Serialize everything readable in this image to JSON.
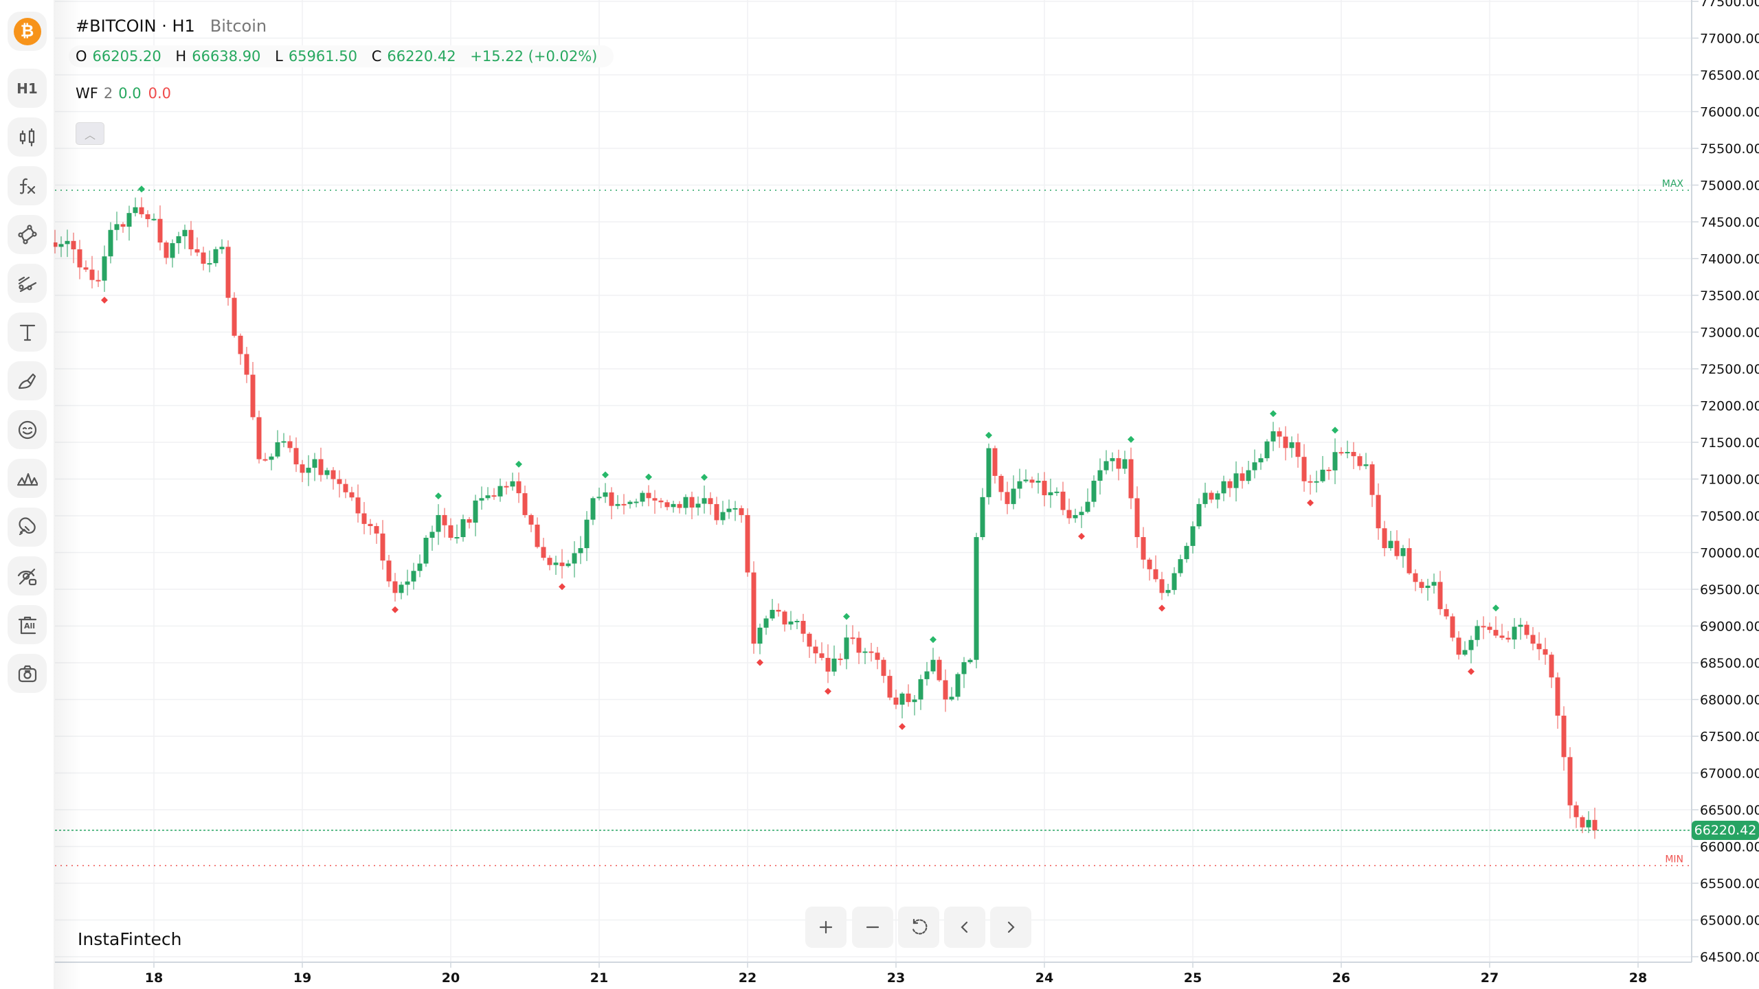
{
  "header": {
    "symbol": "#BITCOIN · H1",
    "name": "Bitcoin",
    "ohlc": {
      "o_label": "O",
      "o": "66205.20",
      "h_label": "H",
      "h": "66638.90",
      "l_label": "L",
      "l": "65961.50",
      "c_label": "C",
      "c": "66220.42",
      "change": "+15.22 (+0.02%)"
    },
    "indicator": {
      "name": "WF",
      "period": "2",
      "up": "0.0",
      "down": "0.0"
    },
    "collapse_icon": "chevron-up-icon"
  },
  "sidebar": {
    "logo_glyph": "₿",
    "tools": [
      "timeframe-h1",
      "chart-type-candles",
      "indicators-fx",
      "drawing-shapes",
      "trend-lines",
      "text",
      "brush",
      "emoji",
      "patterns",
      "magnet",
      "hide-drawings",
      "delete-all",
      "screenshot"
    ],
    "timeframe_label": "H1",
    "delete_all_label": "All"
  },
  "controls": [
    "zoom-in",
    "zoom-out",
    "reset",
    "scroll-left",
    "scroll-right"
  ],
  "brand": "InstaFintech",
  "colors": {
    "up": "#27a463",
    "down": "#ef5350",
    "grid": "#f0f1f3",
    "axis": "#d0d7de"
  },
  "chart_data": {
    "type": "candlestick",
    "timeframe": "H1",
    "x_tick_labels": [
      "18",
      "19",
      "20",
      "21",
      "22",
      "23",
      "24",
      "25",
      "26",
      "27",
      "28"
    ],
    "x_first_tick_hour_index": 16,
    "hours_per_tick": 24,
    "y_tick_labels": [
      "77500.00",
      "77000.00",
      "76500.00",
      "76000.00",
      "75500.00",
      "75000.00",
      "74500.00",
      "74000.00",
      "73500.00",
      "73000.00",
      "72500.00",
      "72000.00",
      "71500.00",
      "71000.00",
      "70500.00",
      "70000.00",
      "69500.00",
      "69000.00",
      "68500.00",
      "68000.00",
      "67500.00",
      "67000.00",
      "66500.00",
      "66000.00",
      "65500.00",
      "65000.00",
      "64500.00"
    ],
    "ylim": [
      64500,
      77500
    ],
    "candle_count": 250,
    "close_path": [
      [
        0,
        74160
      ],
      [
        2,
        74240
      ],
      [
        5,
        73850
      ],
      [
        7,
        73700
      ],
      [
        9,
        74390
      ],
      [
        12,
        74620
      ],
      [
        16,
        74540
      ],
      [
        18,
        74010
      ],
      [
        21,
        74390
      ],
      [
        24,
        73930
      ],
      [
        27,
        74160
      ],
      [
        29,
        72950
      ],
      [
        31,
        72420
      ],
      [
        33,
        71270
      ],
      [
        36,
        71500
      ],
      [
        39,
        71200
      ],
      [
        44,
        71120
      ],
      [
        47,
        70820
      ],
      [
        51,
        70360
      ],
      [
        55,
        69450
      ],
      [
        58,
        69750
      ],
      [
        62,
        70510
      ],
      [
        65,
        70210
      ],
      [
        69,
        70740
      ],
      [
        74,
        70970
      ],
      [
        76,
        70510
      ],
      [
        80,
        69830
      ],
      [
        85,
        70060
      ],
      [
        87,
        70740
      ],
      [
        91,
        70660
      ],
      [
        96,
        70740
      ],
      [
        100,
        70660
      ],
      [
        105,
        70740
      ],
      [
        107,
        70440
      ],
      [
        111,
        70510
      ],
      [
        113,
        68760
      ],
      [
        116,
        69220
      ],
      [
        120,
        69070
      ],
      [
        125,
        68380
      ],
      [
        129,
        68840
      ],
      [
        133,
        68540
      ],
      [
        136,
        67930
      ],
      [
        139,
        68000
      ],
      [
        142,
        68540
      ],
      [
        144,
        68000
      ],
      [
        148,
        68540
      ],
      [
        149,
        70210
      ],
      [
        151,
        71420
      ],
      [
        154,
        70660
      ],
      [
        156,
        70970
      ],
      [
        161,
        70820
      ],
      [
        165,
        70510
      ],
      [
        169,
        71120
      ],
      [
        173,
        71270
      ],
      [
        175,
        70210
      ],
      [
        179,
        69450
      ],
      [
        182,
        69910
      ],
      [
        185,
        70660
      ],
      [
        189,
        70970
      ],
      [
        193,
        71120
      ],
      [
        197,
        71650
      ],
      [
        200,
        71500
      ],
      [
        202,
        70970
      ],
      [
        204,
        70970
      ],
      [
        208,
        71350
      ],
      [
        212,
        71200
      ],
      [
        215,
        70060
      ],
      [
        218,
        70060
      ],
      [
        220,
        69600
      ],
      [
        223,
        69600
      ],
      [
        227,
        68610
      ],
      [
        231,
        68990
      ],
      [
        234,
        68840
      ],
      [
        236,
        68990
      ],
      [
        239,
        68760
      ],
      [
        241,
        68610
      ],
      [
        243,
        67780
      ],
      [
        245,
        66560
      ],
      [
        247,
        66260
      ],
      [
        249,
        66220.42
      ]
    ],
    "last_price": "66220.42",
    "max_label": "MAX",
    "max_value": 74930,
    "min_label": "MIN",
    "min_value": 65740
  }
}
